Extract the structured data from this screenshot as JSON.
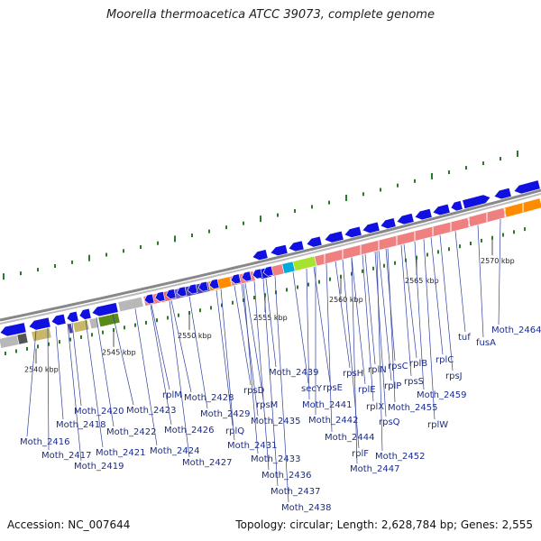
{
  "title": "Moorella thermoacetica ATCC 39073, complete genome",
  "footer": {
    "accession": "Accession: NC_007644",
    "stats": "Topology: circular; Length: 2,628,784 bp; Genes: 2,555"
  },
  "colors": {
    "forward_gene": "#1010e0",
    "rrna_like": "#f08080",
    "backbone": "#888888",
    "tick": "#2a7a2a",
    "label": "#1b2c8a"
  },
  "kbp_ticks": [
    "2540 kbp",
    "2545 kbp",
    "2550 kbp",
    "2555 kbp",
    "2560 kbp",
    "2565 kbp",
    "2570 kbp"
  ],
  "gene_labels": [
    "Moth_2416",
    "Moth_2417",
    "Moth_2418",
    "Moth_2419",
    "Moth_2420",
    "Moth_2421",
    "Moth_2422",
    "Moth_2423",
    "Moth_2424",
    "Moth_2426",
    "Moth_2427",
    "rplM",
    "Moth_2428",
    "Moth_2429",
    "rplQ",
    "Moth_2431",
    "rpsD",
    "rpsM",
    "Moth_2433",
    "Moth_2435",
    "Moth_2436",
    "Moth_2437",
    "Moth_2438",
    "Moth_2439",
    "secY",
    "rpsE",
    "Moth_2441",
    "Moth_2442",
    "Moth_2444",
    "rplF",
    "Moth_2447",
    "rpsH",
    "rplE",
    "rplX",
    "rplN",
    "rplP",
    "rpsQ",
    "rpsC",
    "Moth_2452",
    "rplB",
    "rpsS",
    "Moth_2455",
    "rplC",
    "Moth_2459",
    "rpsJ",
    "rplW",
    "tuf",
    "fusA",
    "Moth_2464"
  ]
}
